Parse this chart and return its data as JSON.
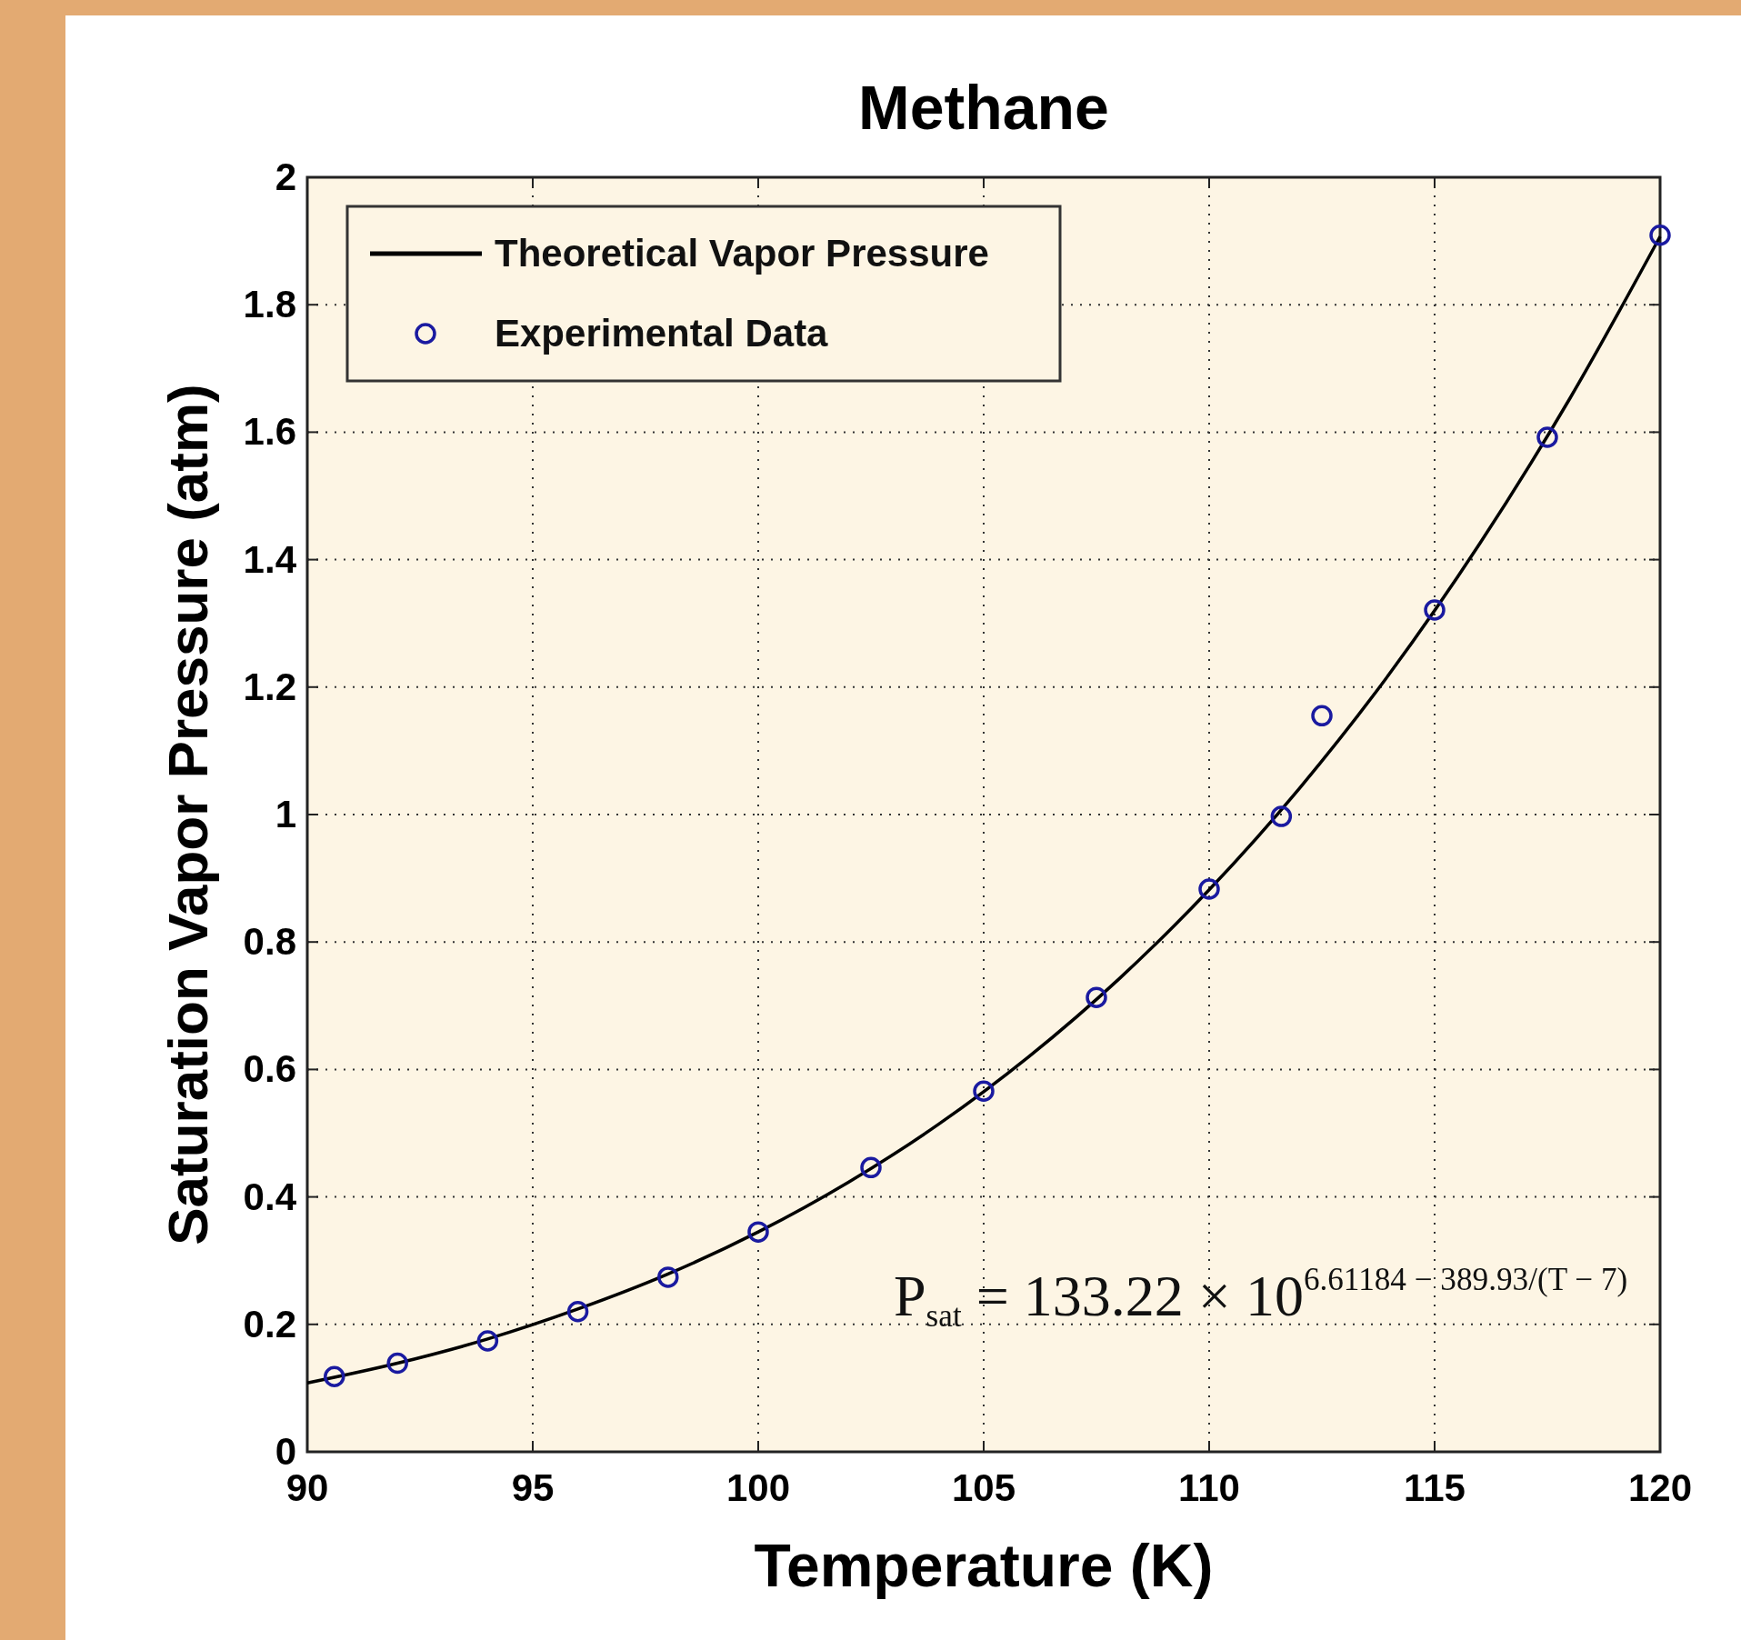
{
  "chart_data": {
    "type": "line",
    "title": "Methane",
    "xlabel": "Temperature (K)",
    "ylabel": "Saturation Vapor Pressure (atm)",
    "xlim": [
      90,
      120
    ],
    "xticks": [
      90,
      95,
      100,
      105,
      110,
      115,
      120
    ],
    "ylim": [
      0,
      2
    ],
    "yticks": [
      0,
      0.2,
      0.4,
      0.6,
      0.8,
      1,
      1.2,
      1.4,
      1.6,
      1.8,
      2
    ],
    "grid": true,
    "legend": "top left",
    "annotations": [
      "P$_{sat}$ = 133.22 × 10$^{6.61184 − 389.93/(T − 7)}$"
    ],
    "series": [
      {
        "name": "Theoretical Vapor Pressure",
        "color": "#000000",
        "line_style": "solid",
        "marker": "none",
        "x": [
          90,
          92,
          94,
          96,
          98,
          100,
          102,
          104,
          106,
          108,
          110,
          112,
          114,
          116,
          118,
          120
        ],
        "values": [
          0.108,
          0.139,
          0.177,
          0.224,
          0.279,
          0.345,
          0.423,
          0.514,
          0.62,
          0.742,
          0.882,
          1.041,
          1.221,
          1.425,
          1.653,
          1.907
        ]
      },
      {
        "name": "Experimental Data",
        "type": "scatter",
        "color": "#1a1aa0",
        "marker": "circle",
        "x": [
          90.6,
          92,
          94,
          96,
          98,
          100,
          102.5,
          105,
          107.5,
          110,
          111.6,
          112.5,
          115,
          117.5,
          120
        ],
        "values": [
          0.118,
          0.139,
          0.174,
          0.22,
          0.274,
          0.345,
          0.446,
          0.566,
          0.713,
          0.883,
          0.997,
          1.155,
          1.321,
          1.592,
          1.909
        ]
      }
    ]
  }
}
